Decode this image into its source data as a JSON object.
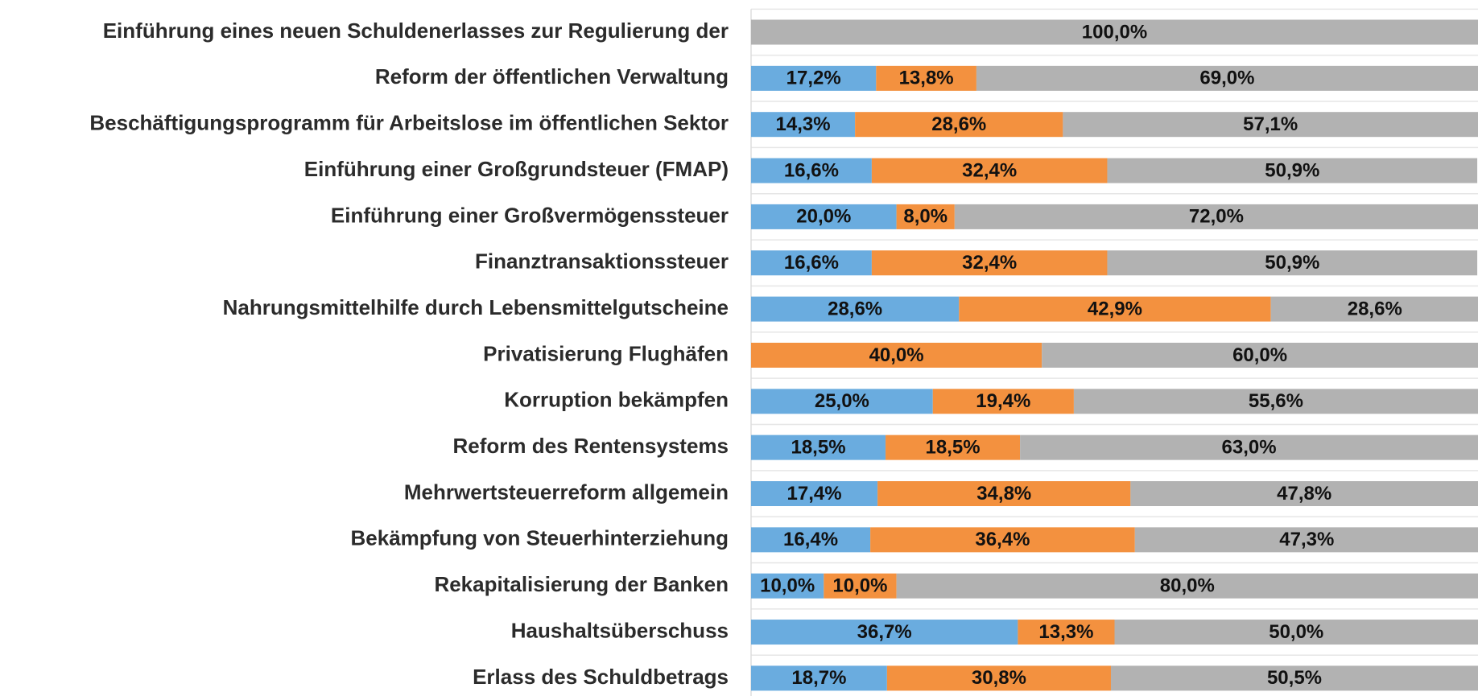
{
  "chart_data": {
    "type": "stacked_barh",
    "categories": [
      "Einführung eines neuen Schuldenerlasses zur Regulierung der",
      "Reform der öffentlichen Verwaltung",
      "Beschäftigungsprogramm für Arbeitslose im öffentlichen Sektor",
      "Einführung einer Großgrundsteuer (FMAP)",
      "Einführung einer Großvermögenssteuer",
      "Finanztransaktionssteuer",
      "Nahrungsmittelhilfe durch Lebensmittelgutscheine",
      "Privatisierung Flughäfen",
      "Korruption bekämpfen",
      "Reform des Rentensystems",
      "Mehrwertsteuerreform allgemein",
      "Bekämpfung von Steuerhinterziehung",
      "Rekapitalisierung der Banken",
      "Haushaltsüberschuss",
      "Erlass des Schuldbetrags"
    ],
    "series": [
      {
        "color": "#6aacdf",
        "values": [
          0,
          17.2,
          14.3,
          16.6,
          20.0,
          16.6,
          28.6,
          0,
          25.0,
          18.5,
          17.4,
          16.4,
          10.0,
          36.7,
          18.7
        ],
        "value_labels": [
          null,
          "17,2%",
          "14,3%",
          "16,6%",
          "20,0%",
          "16,6%",
          "28,6%",
          null,
          "25,0%",
          "18,5%",
          "17,4%",
          "16,4%",
          "10,0%",
          "36,7%",
          "18,7%"
        ]
      },
      {
        "color": "#f3913f",
        "values": [
          0,
          13.8,
          28.6,
          32.4,
          8.0,
          32.4,
          42.9,
          40.0,
          19.4,
          18.5,
          34.8,
          36.4,
          10.0,
          13.3,
          30.8
        ],
        "value_labels": [
          null,
          "13,8%",
          "28,6%",
          "32,4%",
          "8,0%",
          "32,4%",
          "42,9%",
          "40,0%",
          "19,4%",
          "18,5%",
          "34,8%",
          "36,4%",
          "10,0%",
          "13,3%",
          "30,8%"
        ]
      },
      {
        "color": "#b2b2b2",
        "values": [
          100.0,
          69.0,
          57.1,
          50.9,
          72.0,
          50.9,
          28.6,
          60.0,
          55.6,
          63.0,
          47.8,
          47.3,
          80.0,
          50.0,
          50.5
        ],
        "value_labels": [
          "100,0%",
          "69,0%",
          "57,1%",
          "50,9%",
          "72,0%",
          "50,9%",
          "28,6%",
          "60,0%",
          "55,6%",
          "63,0%",
          "47,8%",
          "47,3%",
          "80,0%",
          "50,0%",
          "50,5%"
        ]
      }
    ],
    "xlim": [
      0,
      100
    ]
  }
}
